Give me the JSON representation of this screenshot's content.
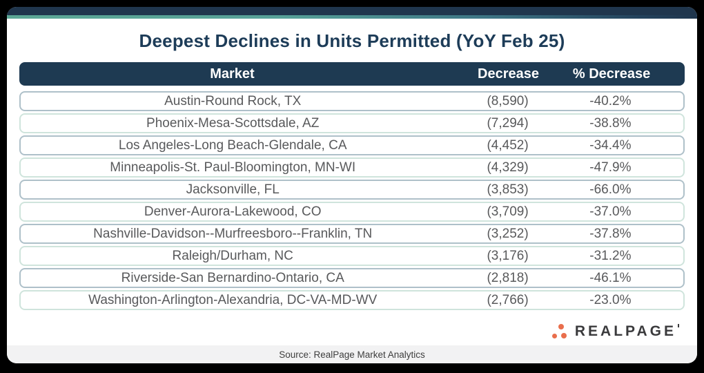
{
  "chart_data": {
    "type": "table",
    "title": "Deepest Declines in Units Permitted (YoY Feb 25)",
    "columns": [
      "Market",
      "Decrease",
      "% Decrease"
    ],
    "rows": [
      {
        "market": "Austin-Round Rock, TX",
        "decrease": "(8,590)",
        "pct_decrease": "-40.2%"
      },
      {
        "market": "Phoenix-Mesa-Scottsdale, AZ",
        "decrease": "(7,294)",
        "pct_decrease": "-38.8%"
      },
      {
        "market": "Los Angeles-Long Beach-Glendale, CA",
        "decrease": "(4,452)",
        "pct_decrease": "-34.4%"
      },
      {
        "market": "Minneapolis-St. Paul-Bloomington, MN-WI",
        "decrease": "(4,329)",
        "pct_decrease": "-47.9%"
      },
      {
        "market": "Jacksonville, FL",
        "decrease": "(3,853)",
        "pct_decrease": "-66.0%"
      },
      {
        "market": "Denver-Aurora-Lakewood, CO",
        "decrease": "(3,709)",
        "pct_decrease": "-37.0%"
      },
      {
        "market": "Nashville-Davidson--Murfreesboro--Franklin, TN",
        "decrease": "(3,252)",
        "pct_decrease": "-37.8%"
      },
      {
        "market": "Raleigh/Durham, NC",
        "decrease": "(3,176)",
        "pct_decrease": "-31.2%"
      },
      {
        "market": "Riverside-San Bernardino-Ontario, CA",
        "decrease": "(2,818)",
        "pct_decrease": "-46.1%"
      },
      {
        "market": "Washington-Arlington-Alexandria, DC-VA-MD-WV",
        "decrease": "(2,766)",
        "pct_decrease": "-23.0%"
      }
    ]
  },
  "footer": {
    "source": "Source: RealPage Market Analytics"
  },
  "logo": {
    "text": "REALPAGE"
  },
  "colors": {
    "navy": "#1e3a52",
    "teal_accent": "#5ca795",
    "row_border_gray": "#aec0c9",
    "row_border_mint": "#cfe4dc",
    "row_text": "#58595b",
    "logo_orange": "#e96e4c",
    "source_strip_bg": "#f2f2f3"
  }
}
